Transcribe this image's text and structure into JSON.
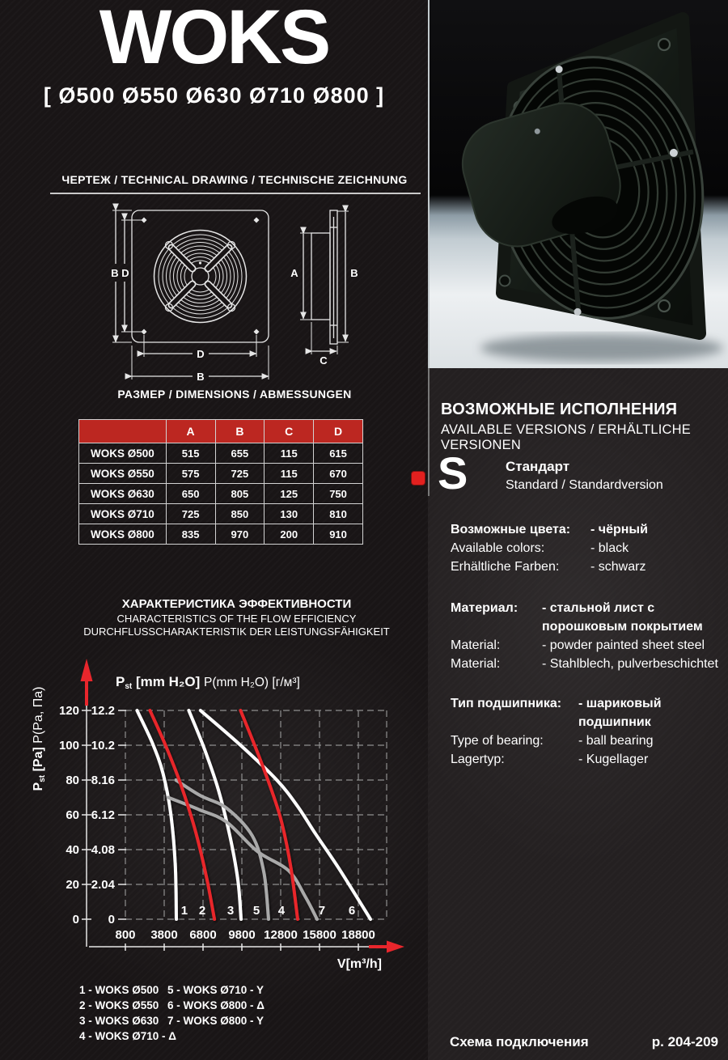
{
  "page": {
    "title": "WOKS",
    "subtitle": "[ Ø500  Ø550  Ø630  Ø710  Ø800 ]"
  },
  "drawing_section": {
    "heading": "ЧЕРТЕЖ / TECHNICAL DRAWING / TECHNISCHE ZEICHNUNG",
    "dim_labels": {
      "front_left_outer": "B",
      "front_left_inner": "D",
      "front_bottom_inner": "D",
      "front_bottom_outer": "B",
      "side_left": "A",
      "side_right": "B",
      "side_bottom": "C"
    }
  },
  "dimensions_section": {
    "heading": "РАЗМЕР / DIMENSIONS / ABMESSUNGEN",
    "table": {
      "headers": [
        "",
        "A",
        "B",
        "C",
        "D"
      ],
      "rows": [
        [
          "WOKS Ø500",
          "515",
          "655",
          "115",
          "615"
        ],
        [
          "WOKS Ø550",
          "575",
          "725",
          "115",
          "670"
        ],
        [
          "WOKS Ø630",
          "650",
          "805",
          "125",
          "750"
        ],
        [
          "WOKS Ø710",
          "725",
          "850",
          "130",
          "810"
        ],
        [
          "WOKS Ø800",
          "835",
          "970",
          "200",
          "910"
        ]
      ]
    }
  },
  "chart_section": {
    "title_ru": "ХАРАКТЕРИСТИКА ЭФФЕКТИВНОСТИ",
    "title_en": "CHARACTERISTICS OF THE FLOW EFFICIENCY",
    "title_de": "DURCHFLUSSCHARAKTERISTIK DER LEISTUNGSFÄHIGKEIT",
    "y_axis_label": {
      "p": "P",
      "sub": "st",
      "bold_rest": " [Pa] ",
      "regular": "P(Pa, Па)"
    },
    "pressure_header": {
      "p": "P",
      "sub": "st",
      "bold_rest": " [mm H₂O] ",
      "regular": "P(mm H₂O) [г/м³]"
    },
    "x_axis_label": "V[m³/h]",
    "legend": {
      "col1": [
        "1 - WOKS Ø500",
        "2 - WOKS Ø550",
        "3 - WOKS Ø630",
        "4 - WOKS Ø710 - Δ"
      ],
      "col2": [
        "5 - WOKS Ø710 - Y",
        "6 - WOKS Ø800 - Δ",
        "7 - WOKS Ø800 - Y"
      ]
    }
  },
  "chart_data": {
    "type": "line",
    "title": "ХАРАКТЕРИСТИКА ЭФФЕКТИВНОСТИ / CHARACTERISTICS OF THE FLOW EFFICIENCY / DURCHFLUSSCHARAKTERISTIK DER LEISTUNGSFÄHIGKEIT",
    "xlabel": "V[m³/h]",
    "ylabel_primary": "Pst [Pa]",
    "ylabel_secondary": "Pst [mm H₂O]",
    "xlim": [
      800,
      20990
    ],
    "ylim": [
      0,
      120
    ],
    "grid": "dashed",
    "x_ticks": [
      800,
      3800,
      6800,
      9800,
      12800,
      15800,
      18800
    ],
    "y_ticks_pa": [
      0,
      20,
      40,
      60,
      80,
      100,
      120
    ],
    "y_ticks_mmh2o": [
      "0",
      "2.04",
      "4.08",
      "6.12",
      "8.16",
      "10.2",
      "12.2"
    ],
    "series": [
      {
        "name": "1 - WOKS Ø500",
        "label": "1",
        "label_x": 5360,
        "color": "#ffffff",
        "points": [
          [
            1700,
            120
          ],
          [
            2900,
            101
          ],
          [
            3700,
            84
          ],
          [
            4300,
            61
          ],
          [
            4650,
            32
          ],
          [
            4740,
            0
          ]
        ]
      },
      {
        "name": "2 - WOKS Ø550",
        "label": "2",
        "label_x": 6740,
        "color": "#e8262c",
        "points": [
          [
            2700,
            120
          ],
          [
            3900,
            100
          ],
          [
            5100,
            77
          ],
          [
            6200,
            51
          ],
          [
            7100,
            23
          ],
          [
            7680,
            0
          ]
        ]
      },
      {
        "name": "3 - WOKS Ø630",
        "label": "3",
        "label_x": 8925,
        "color": "#ffffff",
        "points": [
          [
            5700,
            120
          ],
          [
            6900,
            98
          ],
          [
            8000,
            74
          ],
          [
            8900,
            47
          ],
          [
            9500,
            22
          ],
          [
            9740,
            0
          ]
        ]
      },
      {
        "name": "4 - WOKS Ø710 - Δ",
        "label": "4",
        "label_x": 12860,
        "color": "#e8262c",
        "points": [
          [
            9700,
            120
          ],
          [
            11000,
            96
          ],
          [
            12100,
            74
          ],
          [
            12900,
            55
          ],
          [
            13600,
            29
          ],
          [
            14110,
            0
          ]
        ]
      },
      {
        "name": "5 - WOKS Ø710 - Y",
        "label": "5",
        "label_x": 10925,
        "color": "#a9a9a9",
        "points": [
          [
            4700,
            80
          ],
          [
            6600,
            71
          ],
          [
            8600,
            64
          ],
          [
            10600,
            48
          ],
          [
            11500,
            27
          ],
          [
            11860,
            0
          ]
        ]
      },
      {
        "name": "6 - WOKS Ø800 - Δ",
        "label": "6",
        "label_x": 18300,
        "color": "#ffffff",
        "points": [
          [
            6600,
            120
          ],
          [
            9700,
            100
          ],
          [
            12500,
            80
          ],
          [
            14100,
            65
          ],
          [
            15500,
            49
          ],
          [
            17400,
            28
          ],
          [
            19740,
            0
          ]
        ]
      },
      {
        "name": "7 - WOKS Ø800 - Y",
        "label": "7",
        "label_x": 15985,
        "color": "#a9a9a9",
        "points": [
          [
            4100,
            70
          ],
          [
            6500,
            63
          ],
          [
            8600,
            56
          ],
          [
            11000,
            39
          ],
          [
            13400,
            28
          ],
          [
            14700,
            13
          ],
          [
            15610,
            0
          ]
        ]
      }
    ]
  },
  "versions_section": {
    "heading_ru": "ВОЗМОЖНЫЕ ИСПОЛНЕНИЯ",
    "heading_latin": "AVAILABLE VERSIONS / ERHÄLTLICHE VERSIONEN",
    "badge": "S",
    "badge_title_ru": "Стандарт",
    "badge_title_latin": "Standard / Standardversion",
    "spec_groups": [
      {
        "rows": [
          {
            "label": "Возможные цвета:",
            "value": "- чёрный",
            "bold": true
          },
          {
            "label": "Available colors:",
            "value": "- black",
            "bold": false
          },
          {
            "label": "Erhältliche Farben:",
            "value": "- schwarz",
            "bold": false
          }
        ]
      },
      {
        "rows": [
          {
            "label": "Материал:",
            "value": "- стальной лист с порошковым покрытием",
            "bold": true
          },
          {
            "label": "Material:",
            "value": "- powder painted sheet steel",
            "bold": false
          },
          {
            "label": "Material:",
            "value": "- Stahlblech, pulverbeschichtet",
            "bold": false
          }
        ]
      },
      {
        "rows": [
          {
            "label": "Тип подшипника:",
            "value": "- шариковый подшипник",
            "bold": true
          },
          {
            "label": "Type of bearing:",
            "value": "- ball bearing",
            "bold": false
          },
          {
            "label": "Lagertyp:",
            "value": "- Kugellager",
            "bold": false
          }
        ]
      }
    ]
  },
  "footer": {
    "left": "Схема подключения",
    "right": "p. 204-209"
  },
  "colors": {
    "page_bg": "#191516",
    "right_bg": "#242021",
    "table_header_red": "#bc2721",
    "accent_red": "#e8262c",
    "curve_gray": "#a9a9a9",
    "grid_gray": "#8f8f8f",
    "text_white": "#ffffff"
  }
}
